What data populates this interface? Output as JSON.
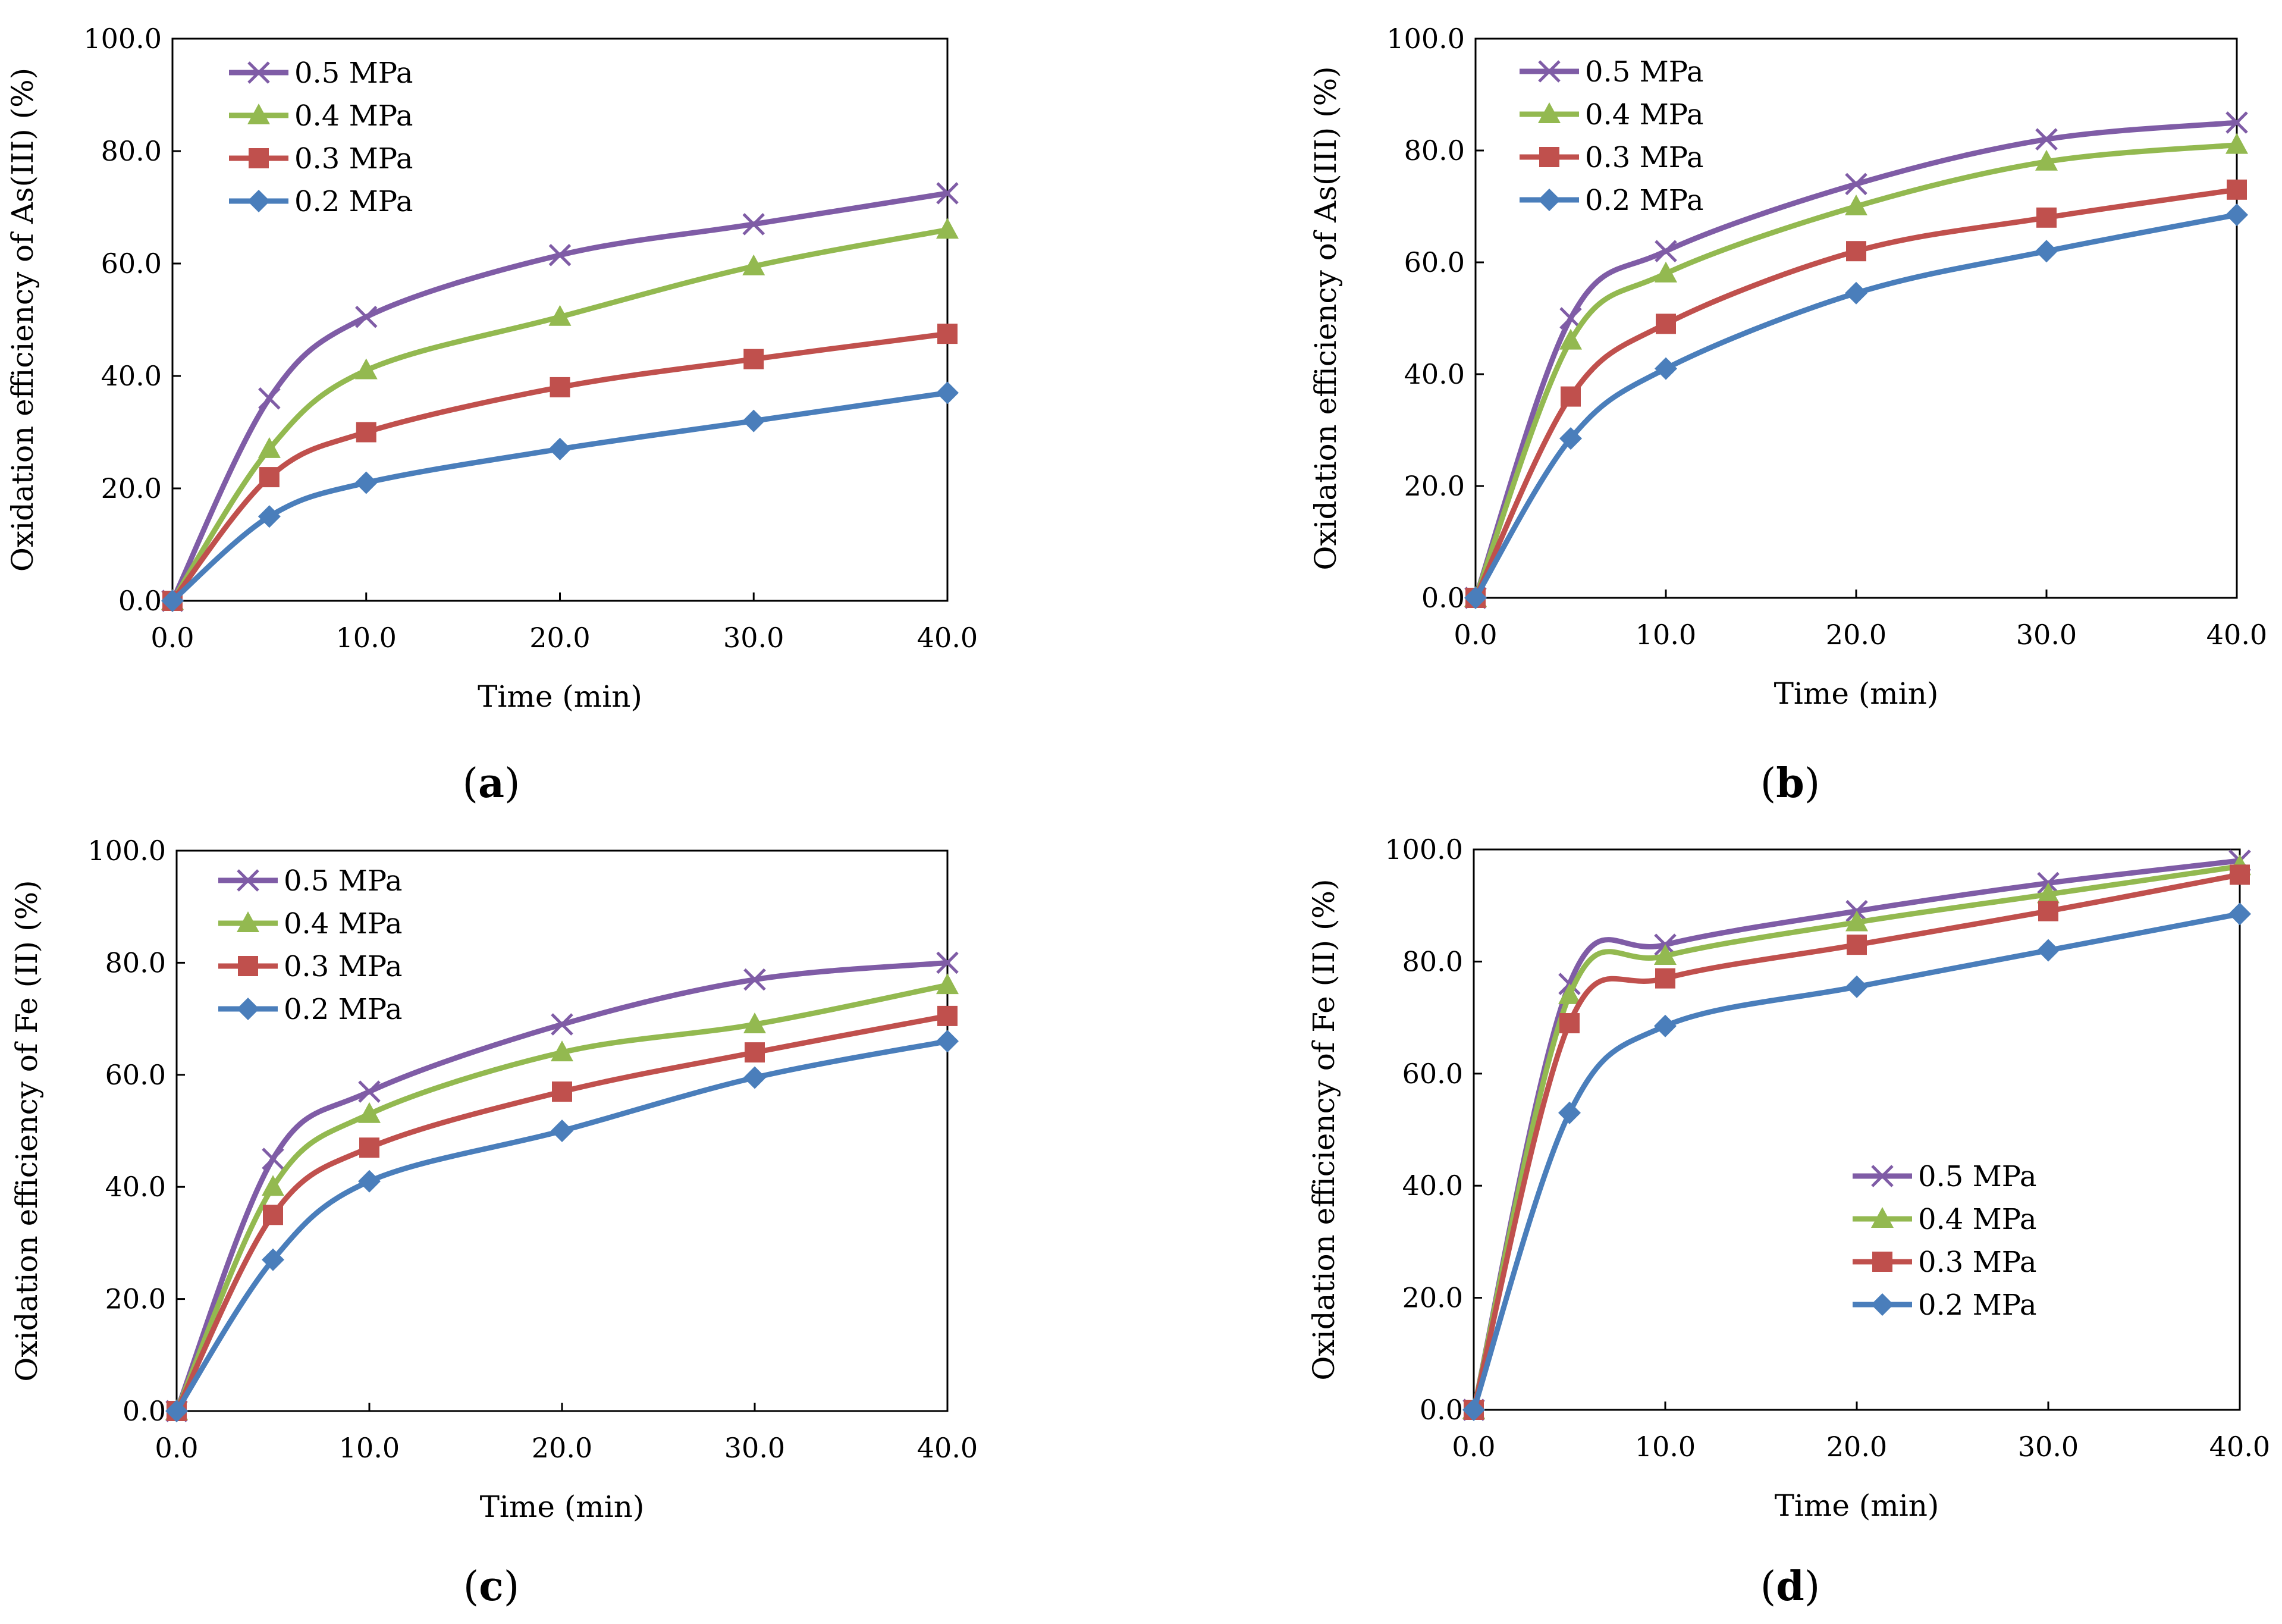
{
  "figure": {
    "colors": {
      "0.5 MPa": "#7f5ca6",
      "0.4 MPa": "#93b950",
      "0.3 MPa": "#c0504d",
      "0.2 MPa": "#4a7ebb"
    },
    "markers": {
      "0.5 MPa": "cross",
      "0.4 MPa": "triangle",
      "0.3 MPa": "square",
      "0.2 MPa": "diamond"
    }
  },
  "chart_data": [
    {
      "id": "a",
      "type": "line",
      "panel_label": "a",
      "xlabel": "Time (min)",
      "ylabel": "Oxidation efficiency of As(III) (%)",
      "xlim": [
        0,
        40
      ],
      "ylim": [
        0,
        100
      ],
      "xticks": [
        "0.0",
        "10.0",
        "20.0",
        "30.0",
        "40.0"
      ],
      "yticks": [
        "0.0",
        "20.0",
        "40.0",
        "60.0",
        "80.0",
        "100.0"
      ],
      "legend_position": "top-left",
      "x": [
        0,
        5,
        10,
        20,
        30,
        40
      ],
      "series": [
        {
          "name": "0.5 MPa",
          "values": [
            0,
            36,
            50.5,
            61.5,
            67,
            72.5
          ]
        },
        {
          "name": "0.4 MPa",
          "values": [
            0,
            27,
            41,
            50.5,
            59.5,
            66
          ]
        },
        {
          "name": "0.3 MPa",
          "values": [
            0,
            22,
            30,
            38,
            43,
            47.5
          ]
        },
        {
          "name": "0.2 MPa",
          "values": [
            0,
            15,
            21,
            27,
            32,
            37
          ]
        }
      ]
    },
    {
      "id": "b",
      "type": "line",
      "panel_label": "b",
      "xlabel": "Time (min)",
      "ylabel": "Oxidation efficiency of As(III) (%)",
      "xlim": [
        0,
        40
      ],
      "ylim": [
        0,
        100
      ],
      "xticks": [
        "0.0",
        "10.0",
        "20.0",
        "30.0",
        "40.0"
      ],
      "yticks": [
        "0.0",
        "20.0",
        "40.0",
        "60.0",
        "80.0",
        "100.0"
      ],
      "legend_position": "top-left",
      "x": [
        0,
        5,
        10,
        20,
        30,
        40
      ],
      "series": [
        {
          "name": "0.5 MPa",
          "values": [
            0,
            50,
            62,
            74,
            82,
            85
          ]
        },
        {
          "name": "0.4 MPa",
          "values": [
            0,
            46,
            58,
            70,
            78,
            81
          ]
        },
        {
          "name": "0.3 MPa",
          "values": [
            0,
            36,
            49,
            62,
            68,
            73
          ]
        },
        {
          "name": "0.2 MPa",
          "values": [
            0,
            28.5,
            41,
            54.5,
            62,
            68.5
          ]
        }
      ]
    },
    {
      "id": "c",
      "type": "line",
      "panel_label": "c",
      "xlabel": "Time (min)",
      "ylabel": "Oxidation efficiency of Fe (II) (%)",
      "xlim": [
        0,
        40
      ],
      "ylim": [
        0,
        100
      ],
      "xticks": [
        "0.0",
        "10.0",
        "20.0",
        "30.0",
        "40.0"
      ],
      "yticks": [
        "0.0",
        "20.0",
        "40.0",
        "60.0",
        "80.0",
        "100.0"
      ],
      "legend_position": "top-left",
      "x": [
        0,
        5,
        10,
        20,
        30,
        40
      ],
      "series": [
        {
          "name": "0.5 MPa",
          "values": [
            0,
            45,
            57,
            69,
            77,
            80
          ]
        },
        {
          "name": "0.4 MPa",
          "values": [
            0,
            40,
            53,
            64,
            69,
            76
          ]
        },
        {
          "name": "0.3 MPa",
          "values": [
            0,
            35,
            47,
            57,
            64,
            70.5
          ]
        },
        {
          "name": "0.2 MPa",
          "values": [
            0,
            27,
            41,
            50,
            59.5,
            66
          ]
        }
      ]
    },
    {
      "id": "d",
      "type": "line",
      "panel_label": "d",
      "xlabel": "Time (min)",
      "ylabel": "Oxidation efficiency of Fe (II) (%)",
      "xlim": [
        0,
        40
      ],
      "ylim": [
        0,
        100
      ],
      "xticks": [
        "0.0",
        "10.0",
        "20.0",
        "30.0",
        "40.0"
      ],
      "yticks": [
        "0.0",
        "20.0",
        "40.0",
        "60.0",
        "80.0",
        "100.0"
      ],
      "legend_position": "center-right",
      "x": [
        0,
        5,
        10,
        20,
        30,
        40
      ],
      "series": [
        {
          "name": "0.5 MPa",
          "values": [
            0,
            76,
            83,
            89,
            94,
            98
          ]
        },
        {
          "name": "0.4 MPa",
          "values": [
            0,
            74,
            81,
            87,
            92,
            97
          ]
        },
        {
          "name": "0.3 MPa",
          "values": [
            0,
            69,
            77,
            83,
            89,
            95.5
          ]
        },
        {
          "name": "0.2 MPa",
          "values": [
            0,
            53,
            68.5,
            75.5,
            82,
            88.5
          ]
        }
      ]
    }
  ]
}
